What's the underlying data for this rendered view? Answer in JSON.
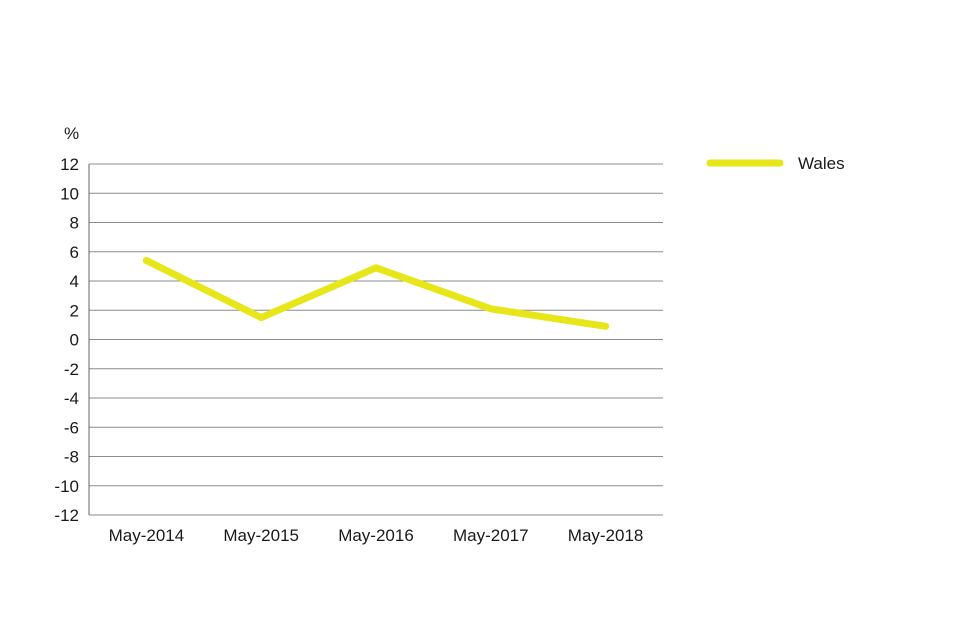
{
  "chart_data": {
    "type": "line",
    "title": "",
    "xlabel": "",
    "ylabel": "%",
    "categories": [
      "May-2014",
      "May-2015",
      "May-2016",
      "May-2017",
      "May-2018"
    ],
    "series": [
      {
        "name": "Wales",
        "values": [
          5.4,
          1.5,
          4.9,
          2.1,
          0.9
        ],
        "color": "#e6e619"
      }
    ],
    "ylim": [
      -12,
      12
    ],
    "yticks": [
      12,
      10,
      8,
      6,
      4,
      2,
      0,
      -2,
      -4,
      -6,
      -8,
      -10,
      -12
    ],
    "grid": true,
    "legend_position": "top-right"
  }
}
